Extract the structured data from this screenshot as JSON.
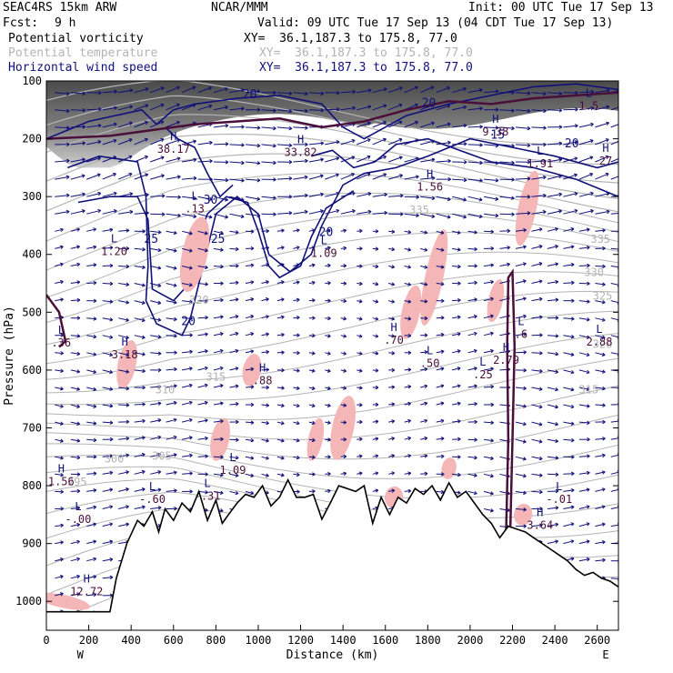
{
  "header": {
    "model": "SEAC4RS 15km ARW",
    "center": "NCAR/MMM",
    "init": "Init: 00 UTC Tue 17 Sep 13",
    "fcst_label": "Fcst:",
    "fcst_value": "9 h",
    "valid": "Valid: 09 UTC Tue 17 Sep 13 (04 CDT Tue 17 Sep 13)",
    "fields": [
      {
        "name": "Potential vorticity",
        "xy": "XY=  36.1,187.3 to 175.8, 77.0",
        "color": "#000000"
      },
      {
        "name": "Potential temperature",
        "xy": "XY=  36.1,187.3 to 175.8, 77.0",
        "color": "#b4b4b4"
      },
      {
        "name": "Horizontal wind speed",
        "xy": "XY=  36.1,187.3 to 175.8, 77.0",
        "color": "#10107a"
      }
    ]
  },
  "colors": {
    "pv_dark": "#3a3a3a",
    "pv_fill": "#9a9a9a",
    "theta": "#b4b4b4",
    "wind": "#10107a",
    "pv_contour": "#4a0f3a",
    "pink": "#f4b6b6",
    "terrain": "#000000"
  },
  "chart_data": {
    "type": "cross-section",
    "xlabel": "Distance (km)",
    "ylabel": "Pressure (hPa)",
    "xlim": [
      0,
      2700
    ],
    "ylim": [
      1050,
      100
    ],
    "x_ticks": [
      0,
      200,
      400,
      600,
      800,
      1000,
      1200,
      1400,
      1600,
      1800,
      2000,
      2200,
      2400,
      2600
    ],
    "y_ticks": [
      100,
      200,
      300,
      400,
      500,
      600,
      700,
      800,
      900,
      1000
    ],
    "x_end_labels": {
      "left": "W",
      "right": "E"
    },
    "terrain": {
      "x": [
        0,
        300,
        330,
        380,
        430,
        460,
        500,
        530,
        560,
        600,
        640,
        680,
        720,
        760,
        800,
        830,
        860,
        900,
        940,
        980,
        1020,
        1060,
        1100,
        1140,
        1180,
        1220,
        1260,
        1300,
        1340,
        1380,
        1420,
        1460,
        1500,
        1540,
        1580,
        1620,
        1660,
        1700,
        1740,
        1780,
        1820,
        1860,
        1900,
        1940,
        1980,
        2020,
        2060,
        2100,
        2140,
        2180,
        2220,
        2260,
        2300,
        2340,
        2380,
        2420,
        2460,
        2500,
        2540,
        2580,
        2620,
        2660,
        2700
      ],
      "p": [
        1018,
        1018,
        960,
        900,
        860,
        870,
        845,
        880,
        840,
        860,
        830,
        845,
        810,
        860,
        825,
        865,
        850,
        830,
        815,
        820,
        800,
        835,
        820,
        790,
        820,
        820,
        815,
        858,
        830,
        800,
        805,
        810,
        800,
        865,
        820,
        850,
        820,
        830,
        805,
        815,
        800,
        825,
        795,
        820,
        810,
        830,
        850,
        865,
        890,
        870,
        875,
        880,
        890,
        900,
        910,
        920,
        930,
        945,
        955,
        950,
        960,
        965,
        975
      ]
    },
    "theta_contours": [
      {
        "label": "295",
        "at": [
          145,
          800
        ]
      },
      {
        "label": "300",
        "at": [
          320,
          760
        ]
      },
      {
        "label": "305",
        "at": [
          545,
          755
        ]
      },
      {
        "label": "310",
        "at": [
          560,
          640
        ]
      },
      {
        "label": "315",
        "at": [
          800,
          618
        ]
      },
      {
        "label": "315",
        "at": [
          2560,
          640
        ]
      },
      {
        "label": "320",
        "at": [
          720,
          485
        ]
      },
      {
        "label": "320",
        "at": [
          2625,
          562
        ]
      },
      {
        "label": "325",
        "at": [
          2625,
          478
        ]
      },
      {
        "label": "330",
        "at": [
          2585,
          437
        ]
      },
      {
        "label": "335",
        "at": [
          1760,
          330
        ]
      },
      {
        "label": "335",
        "at": [
          2615,
          380
        ]
      }
    ],
    "wind_contours": [
      {
        "label": "20",
        "at": [
          960,
          130
        ]
      },
      {
        "label": "20",
        "at": [
          1805,
          145
        ]
      },
      {
        "label": "20",
        "at": [
          2480,
          215
        ]
      },
      {
        "label": "25",
        "at": [
          495,
          380
        ]
      },
      {
        "label": "25",
        "at": [
          810,
          380
        ]
      },
      {
        "label": "30",
        "at": [
          775,
          312
        ]
      },
      {
        "label": "20",
        "at": [
          1320,
          368
        ]
      },
      {
        "label": "20",
        "at": [
          670,
          522
        ]
      },
      {
        "label": "15",
        "at": [
          2130,
          200
        ]
      }
    ],
    "extrema": [
      {
        "kind": "H",
        "value": "38.17",
        "at": [
          600,
          215
        ]
      },
      {
        "kind": "H",
        "value": "33.82",
        "at": [
          1200,
          220
        ]
      },
      {
        "kind": "L",
        "value": ".13",
        "at": [
          700,
          318
        ]
      },
      {
        "kind": "L",
        "value": "1.20",
        "at": [
          320,
          392
        ]
      },
      {
        "kind": "L",
        "value": "1.09",
        "at": [
          1310,
          395
        ]
      },
      {
        "kind": "H",
        "value": "9.38",
        "at": [
          2120,
          185
        ]
      },
      {
        "kind": "H",
        "value": "1.56",
        "at": [
          1810,
          280
        ]
      },
      {
        "kind": "L",
        "value": "1.91",
        "at": [
          2330,
          240
        ]
      },
      {
        "kind": "H",
        "value": "27",
        "at": [
          2640,
          235
        ]
      },
      {
        "kind": "L",
        "value": "1.5",
        "at": [
          2560,
          140
        ]
      },
      {
        "kind": "H",
        "value": ".70",
        "at": [
          1640,
          545
        ]
      },
      {
        "kind": "H",
        "value": "3.18",
        "at": [
          370,
          570
        ]
      },
      {
        "kind": "L",
        "value": ".36",
        "at": [
          70,
          550
        ]
      },
      {
        "kind": "H",
        "value": ".88",
        "at": [
          1020,
          615
        ]
      },
      {
        "kind": "L",
        "value": ".50",
        "at": [
          1810,
          585
        ]
      },
      {
        "kind": "L",
        "value": ".25",
        "at": [
          2060,
          605
        ]
      },
      {
        "kind": "H",
        "value": "2.79",
        "at": [
          2170,
          580
        ]
      },
      {
        "kind": "L",
        "value": ".6",
        "at": [
          2240,
          535
        ]
      },
      {
        "kind": "L",
        "value": "2.88",
        "at": [
          2610,
          548
        ]
      },
      {
        "kind": "H",
        "value": "1.56",
        "at": [
          70,
          790
        ]
      },
      {
        "kind": "L",
        "value": "-.60",
        "at": [
          500,
          820
        ]
      },
      {
        "kind": "L",
        "value": "1.09",
        "at": [
          880,
          770
        ]
      },
      {
        "kind": "L",
        "value": "-.31",
        "at": [
          760,
          815
        ]
      },
      {
        "kind": "L",
        "value": "-.00",
        "at": [
          150,
          855
        ]
      },
      {
        "kind": "L",
        "value": "-.01",
        "at": [
          2420,
          820
        ]
      },
      {
        "kind": "H",
        "value": "3.64",
        "at": [
          2330,
          865
        ]
      },
      {
        "kind": "H",
        "value": "12.72",
        "at": [
          190,
          980
        ]
      }
    ]
  }
}
